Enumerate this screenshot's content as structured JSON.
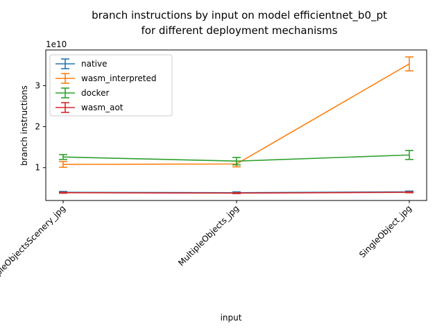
{
  "chart_data": {
    "type": "line",
    "title": "branch instructions by input on model efficientnet_b0_pt",
    "subtitle": "for different deployment mechanisms",
    "xlabel": "input",
    "ylabel": "branch instructions",
    "y_offset_label": "1e10",
    "categories": [
      "MultipleObjectsScenery_jpg",
      "MultipleObjects_jpg",
      "SingleObject_jpg"
    ],
    "yticks": [
      1,
      2,
      3
    ],
    "ylim": [
      0.2,
      3.87
    ],
    "error_bars": true,
    "legend_position": "upper-left",
    "grid": false,
    "series": [
      {
        "name": "native",
        "color": "#1f77b4",
        "values": [
          0.4,
          0.39,
          0.41
        ],
        "errors": [
          0.02,
          0.02,
          0.02
        ]
      },
      {
        "name": "wasm_interpreted",
        "color": "#ff7f0e",
        "values": [
          1.08,
          1.09,
          3.53
        ],
        "errors": [
          0.07,
          0.07,
          0.17
        ]
      },
      {
        "name": "docker",
        "color": "#2ca02c",
        "values": [
          1.26,
          1.16,
          1.31
        ],
        "errors": [
          0.06,
          0.09,
          0.11
        ]
      },
      {
        "name": "wasm_aot",
        "color": "#d62728",
        "values": [
          0.39,
          0.38,
          0.4
        ],
        "errors": [
          0.01,
          0.01,
          0.01
        ]
      }
    ]
  }
}
